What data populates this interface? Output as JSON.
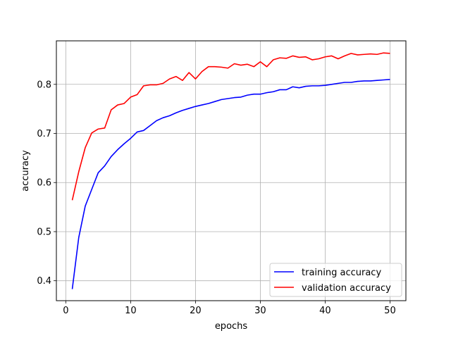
{
  "chart_data": {
    "type": "line",
    "title": "",
    "xlabel": "epochs",
    "ylabel": "accuracy",
    "xlim": [
      -1.45,
      52.45
    ],
    "ylim": [
      0.3594,
      0.8886
    ],
    "xticks": [
      0,
      10,
      20,
      30,
      40,
      50
    ],
    "yticks": [
      0.4,
      0.5,
      0.6,
      0.7,
      0.8
    ],
    "grid": true,
    "legend_position": "lower-right",
    "x": [
      1,
      2,
      3,
      4,
      5,
      6,
      7,
      8,
      9,
      10,
      11,
      12,
      13,
      14,
      15,
      16,
      17,
      18,
      19,
      20,
      21,
      22,
      23,
      24,
      25,
      26,
      27,
      28,
      29,
      30,
      31,
      32,
      33,
      34,
      35,
      36,
      37,
      38,
      39,
      40,
      41,
      42,
      43,
      44,
      45,
      46,
      47,
      48,
      49,
      50
    ],
    "series": [
      {
        "name": "training accuracy",
        "color": "#0000ff",
        "values": [
          0.383,
          0.488,
          0.552,
          0.586,
          0.62,
          0.634,
          0.653,
          0.667,
          0.679,
          0.69,
          0.703,
          0.706,
          0.716,
          0.726,
          0.732,
          0.736,
          0.742,
          0.747,
          0.751,
          0.755,
          0.758,
          0.761,
          0.765,
          0.769,
          0.771,
          0.773,
          0.774,
          0.778,
          0.78,
          0.78,
          0.783,
          0.785,
          0.789,
          0.789,
          0.795,
          0.793,
          0.796,
          0.797,
          0.797,
          0.798,
          0.8,
          0.802,
          0.804,
          0.804,
          0.806,
          0.807,
          0.807,
          0.808,
          0.809,
          0.81
        ]
      },
      {
        "name": "validation accuracy",
        "color": "#ff0000",
        "values": [
          0.564,
          0.622,
          0.671,
          0.701,
          0.709,
          0.711,
          0.748,
          0.758,
          0.761,
          0.774,
          0.779,
          0.797,
          0.799,
          0.799,
          0.802,
          0.811,
          0.816,
          0.808,
          0.824,
          0.811,
          0.826,
          0.836,
          0.836,
          0.835,
          0.833,
          0.842,
          0.839,
          0.841,
          0.836,
          0.846,
          0.836,
          0.85,
          0.854,
          0.853,
          0.858,
          0.855,
          0.856,
          0.85,
          0.852,
          0.856,
          0.858,
          0.852,
          0.858,
          0.863,
          0.86,
          0.861,
          0.862,
          0.861,
          0.864,
          0.863
        ]
      }
    ]
  }
}
